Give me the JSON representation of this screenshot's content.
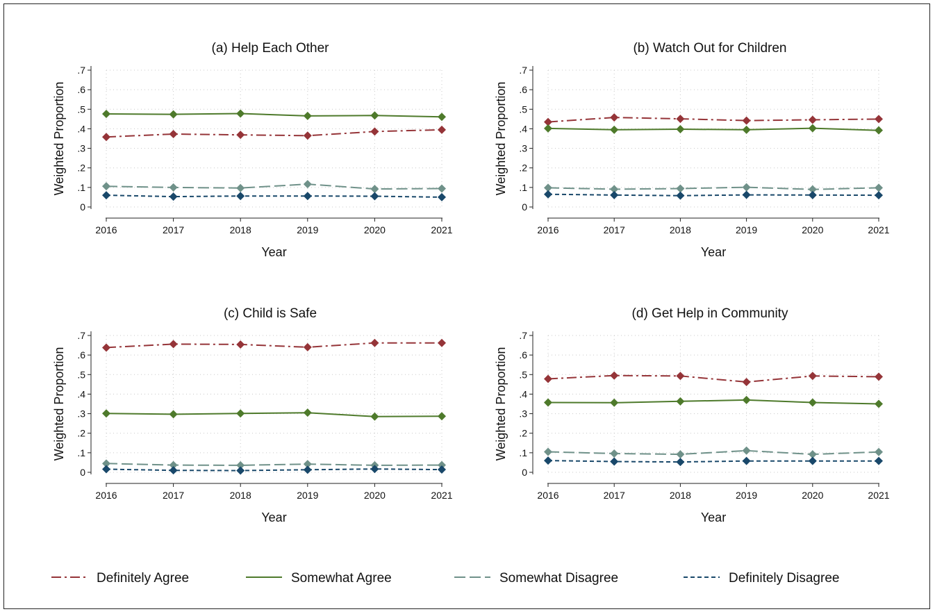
{
  "legend": [
    {
      "key": "da",
      "label": "Definitely Agree",
      "color": "#953438",
      "dash": "dash-dot"
    },
    {
      "key": "sa",
      "label": "Somewhat Agree",
      "color": "#4e7a2b",
      "dash": "solid"
    },
    {
      "key": "sd",
      "label": "Somewhat Disagree",
      "color": "#6f9189",
      "dash": "long-dash"
    },
    {
      "key": "dd",
      "label": "Definitely Disagree",
      "color": "#19486a",
      "dash": "short-dash"
    }
  ],
  "chart_data": [
    {
      "type": "line",
      "title": "(a) Help Each Other",
      "xlabel": "Year",
      "ylabel": "Weighted Proportion",
      "x": [
        2016,
        2017,
        2018,
        2019,
        2020,
        2021
      ],
      "xticks": [
        "2016",
        "2017",
        "2018",
        "2019",
        "2020",
        "2021"
      ],
      "yticks": [
        "0",
        ".1",
        ".2",
        ".3",
        ".4",
        ".5",
        ".6",
        ".7"
      ],
      "ylim": [
        0,
        0.7
      ],
      "grid": true,
      "series": [
        {
          "name": "Definitely Agree",
          "values": [
            0.358,
            0.373,
            0.369,
            0.365,
            0.386,
            0.395
          ]
        },
        {
          "name": "Somewhat Agree",
          "values": [
            0.476,
            0.474,
            0.478,
            0.466,
            0.468,
            0.461
          ]
        },
        {
          "name": "Somewhat Disagree",
          "values": [
            0.106,
            0.1,
            0.097,
            0.117,
            0.092,
            0.094
          ]
        },
        {
          "name": "Definitely Disagree",
          "values": [
            0.06,
            0.053,
            0.056,
            0.056,
            0.055,
            0.05
          ]
        }
      ]
    },
    {
      "type": "line",
      "title": "(b) Watch Out for Children",
      "xlabel": "Year",
      "ylabel": "Weighted Proportion",
      "x": [
        2016,
        2017,
        2018,
        2019,
        2020,
        2021
      ],
      "xticks": [
        "2016",
        "2017",
        "2018",
        "2019",
        "2020",
        "2021"
      ],
      "yticks": [
        "0",
        ".1",
        ".2",
        ".3",
        ".4",
        ".5",
        ".6",
        ".7"
      ],
      "ylim": [
        0,
        0.7
      ],
      "grid": true,
      "series": [
        {
          "name": "Definitely Agree",
          "values": [
            0.435,
            0.458,
            0.451,
            0.442,
            0.446,
            0.45
          ]
        },
        {
          "name": "Somewhat Agree",
          "values": [
            0.402,
            0.395,
            0.398,
            0.395,
            0.403,
            0.392
          ]
        },
        {
          "name": "Somewhat Disagree",
          "values": [
            0.098,
            0.091,
            0.094,
            0.101,
            0.09,
            0.098
          ]
        },
        {
          "name": "Definitely Disagree",
          "values": [
            0.065,
            0.061,
            0.058,
            0.062,
            0.061,
            0.06
          ]
        }
      ]
    },
    {
      "type": "line",
      "title": "(c) Child is Safe",
      "xlabel": "Year",
      "ylabel": "Weighted Proportion",
      "x": [
        2016,
        2017,
        2018,
        2019,
        2020,
        2021
      ],
      "xticks": [
        "2016",
        "2017",
        "2018",
        "2019",
        "2020",
        "2021"
      ],
      "yticks": [
        "0",
        ".1",
        ".2",
        ".3",
        ".4",
        ".5",
        ".6",
        ".7"
      ],
      "ylim": [
        0,
        0.7
      ],
      "grid": true,
      "series": [
        {
          "name": "Definitely Agree",
          "values": [
            0.638,
            0.656,
            0.654,
            0.64,
            0.662,
            0.662
          ]
        },
        {
          "name": "Somewhat Agree",
          "values": [
            0.301,
            0.297,
            0.301,
            0.305,
            0.285,
            0.287
          ]
        },
        {
          "name": "Somewhat Disagree",
          "values": [
            0.045,
            0.037,
            0.036,
            0.042,
            0.036,
            0.037
          ]
        },
        {
          "name": "Definitely Disagree",
          "values": [
            0.016,
            0.01,
            0.009,
            0.013,
            0.017,
            0.014
          ]
        }
      ]
    },
    {
      "type": "line",
      "title": "(d) Get Help in Community",
      "xlabel": "Year",
      "ylabel": "Weighted Proportion",
      "x": [
        2016,
        2017,
        2018,
        2019,
        2020,
        2021
      ],
      "xticks": [
        "2016",
        "2017",
        "2018",
        "2019",
        "2020",
        "2021"
      ],
      "yticks": [
        "0",
        ".1",
        ".2",
        ".3",
        ".4",
        ".5",
        ".6",
        ".7"
      ],
      "ylim": [
        0,
        0.7
      ],
      "grid": true,
      "series": [
        {
          "name": "Definitely Agree",
          "values": [
            0.478,
            0.495,
            0.493,
            0.462,
            0.493,
            0.489
          ]
        },
        {
          "name": "Somewhat Agree",
          "values": [
            0.357,
            0.356,
            0.363,
            0.37,
            0.357,
            0.35
          ]
        },
        {
          "name": "Somewhat Disagree",
          "values": [
            0.105,
            0.096,
            0.092,
            0.111,
            0.092,
            0.104
          ]
        },
        {
          "name": "Definitely Disagree",
          "values": [
            0.06,
            0.055,
            0.053,
            0.058,
            0.058,
            0.058
          ]
        }
      ]
    }
  ]
}
